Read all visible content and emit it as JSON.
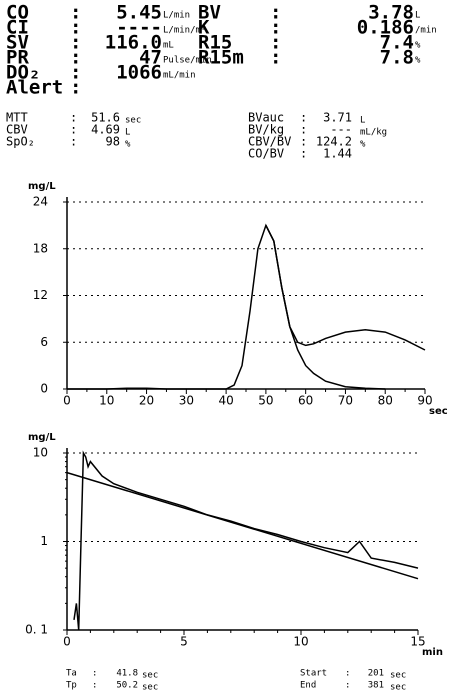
{
  "readings": {
    "separator": ":",
    "primary_left": [
      {
        "label": "CO",
        "value": "5.45",
        "unit": "L/min"
      },
      {
        "label": "CI",
        "value": "----",
        "unit": "L/min/m²"
      },
      {
        "label": "SV",
        "value": "116.0",
        "unit": "mL"
      },
      {
        "label": "PR",
        "value": "47",
        "unit": "Pulse/min"
      },
      {
        "label": "DO₂",
        "value": "1066",
        "unit": "mL/min"
      },
      {
        "label": "Alert"
      }
    ],
    "primary_right": [
      {
        "label": "BV",
        "value": "3.78",
        "unit": "L"
      },
      {
        "label": "K",
        "value": "0.186",
        "unit": "/min"
      },
      {
        "label": "R15",
        "value": "7.4",
        "unit": "%"
      },
      {
        "label": "R15m",
        "value": "7.8",
        "unit": "%"
      }
    ],
    "secondary_left": [
      {
        "label": "MTT",
        "value": "51.6",
        "unit": "sec"
      },
      {
        "label": "CBV",
        "value": "4.69",
        "unit": "L"
      },
      {
        "label": "SpO₂",
        "value": "98",
        "unit": "%"
      }
    ],
    "secondary_right": [
      {
        "label": "BVauc",
        "value": "3.71",
        "unit": "L"
      },
      {
        "label": "BV/kg",
        "value": "---",
        "unit": "mL/kg"
      },
      {
        "label": "CBV/BV",
        "value": "124.2",
        "unit": "%"
      },
      {
        "label": "CO/BV",
        "value": "1.44"
      }
    ]
  },
  "chart_data": [
    {
      "type": "line",
      "y_label": "mg/L",
      "x_label": "sec",
      "xlim": [
        0,
        90
      ],
      "xticks": [
        0,
        10,
        20,
        30,
        40,
        50,
        60,
        70,
        80,
        90
      ],
      "ylim": [
        0,
        24
      ],
      "yticks": [
        0,
        6,
        12,
        18,
        24
      ],
      "grid": true,
      "log_y": false,
      "series": [
        {
          "name": "measured",
          "color": "#000000",
          "x": [
            0,
            10,
            15,
            20,
            25,
            30,
            40,
            42,
            44,
            46,
            48,
            50,
            52,
            54,
            56,
            58,
            60,
            62,
            65,
            70,
            75,
            80,
            85,
            90
          ],
          "values": [
            0,
            0,
            0.1,
            0.1,
            0,
            0,
            0,
            0.5,
            3,
            10,
            18,
            21,
            19,
            13,
            8,
            6,
            5.6,
            5.8,
            6.5,
            7.3,
            7.6,
            7.3,
            6.3,
            5
          ]
        },
        {
          "name": "fit",
          "color": "#000000",
          "x": [
            50,
            52,
            54,
            56,
            58,
            60,
            62,
            65,
            70,
            75,
            80
          ],
          "values": [
            21,
            19,
            13,
            8,
            5,
            3,
            2,
            1,
            0.3,
            0.1,
            0
          ]
        }
      ]
    },
    {
      "type": "line",
      "y_label": "mg/L",
      "x_label": "min",
      "xlim": [
        0,
        15
      ],
      "xticks": [
        0,
        5,
        10,
        15
      ],
      "ylim": [
        0.1,
        10
      ],
      "yticks": [
        {
          "value": 0.1,
          "label": "0. 1"
        },
        1,
        10
      ],
      "grid": true,
      "log_y": true,
      "series": [
        {
          "name": "measured",
          "color": "#000000",
          "x": [
            0.3,
            0.4,
            0.5,
            0.6,
            0.7,
            0.8,
            0.9,
            1,
            1.5,
            2,
            3,
            4,
            5,
            6,
            7,
            8,
            9,
            10,
            11,
            12,
            12.5,
            13,
            14,
            15
          ],
          "values": [
            0.13,
            0.2,
            0.1,
            1,
            10,
            9,
            7,
            8,
            5.5,
            4.5,
            3.6,
            3,
            2.5,
            2,
            1.7,
            1.4,
            1.2,
            1,
            0.85,
            0.75,
            1,
            0.65,
            0.58,
            0.5
          ]
        },
        {
          "name": "fit",
          "color": "#000000",
          "x": [
            0,
            15
          ],
          "values": [
            6,
            0.38
          ]
        }
      ]
    }
  ],
  "footer": {
    "left": [
      {
        "label": "Ta",
        "value": "41.8",
        "unit": "sec"
      },
      {
        "label": "Tp",
        "value": "50.2",
        "unit": "sec"
      }
    ],
    "right": [
      {
        "label": "Start",
        "value": "201",
        "unit": "sec"
      },
      {
        "label": "End",
        "value": "381",
        "unit": "sec"
      }
    ]
  }
}
